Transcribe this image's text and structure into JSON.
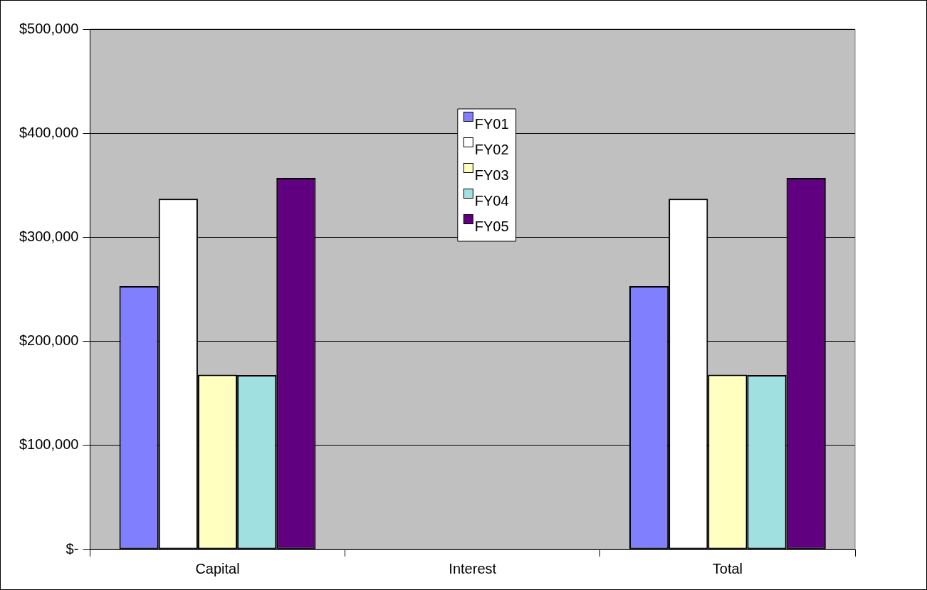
{
  "chart_data": {
    "type": "bar",
    "categories": [
      "Capital",
      "Interest",
      "Total"
    ],
    "series": [
      {
        "name": "FY01",
        "color": "#8080ff",
        "values": [
          253000,
          0,
          253000
        ]
      },
      {
        "name": "FY02",
        "color": "#ffffff",
        "values": [
          337000,
          0,
          337000
        ]
      },
      {
        "name": "FY03",
        "color": "#ffffc0",
        "values": [
          168000,
          0,
          168000
        ]
      },
      {
        "name": "FY04",
        "color": "#a0e0e0",
        "values": [
          167500,
          0,
          167500
        ]
      },
      {
        "name": "FY05",
        "color": "#600080",
        "values": [
          357000,
          0,
          357000
        ]
      }
    ],
    "ylim": [
      0,
      500000
    ],
    "yticks": [
      {
        "value": 0,
        "label": "$-"
      },
      {
        "value": 100000,
        "label": "$100,000"
      },
      {
        "value": 200000,
        "label": "$200,000"
      },
      {
        "value": 300000,
        "label": "$300,000"
      },
      {
        "value": 400000,
        "label": "$400,000"
      },
      {
        "value": 500000,
        "label": "$500,000"
      }
    ],
    "grid": "y",
    "legend": "top"
  }
}
